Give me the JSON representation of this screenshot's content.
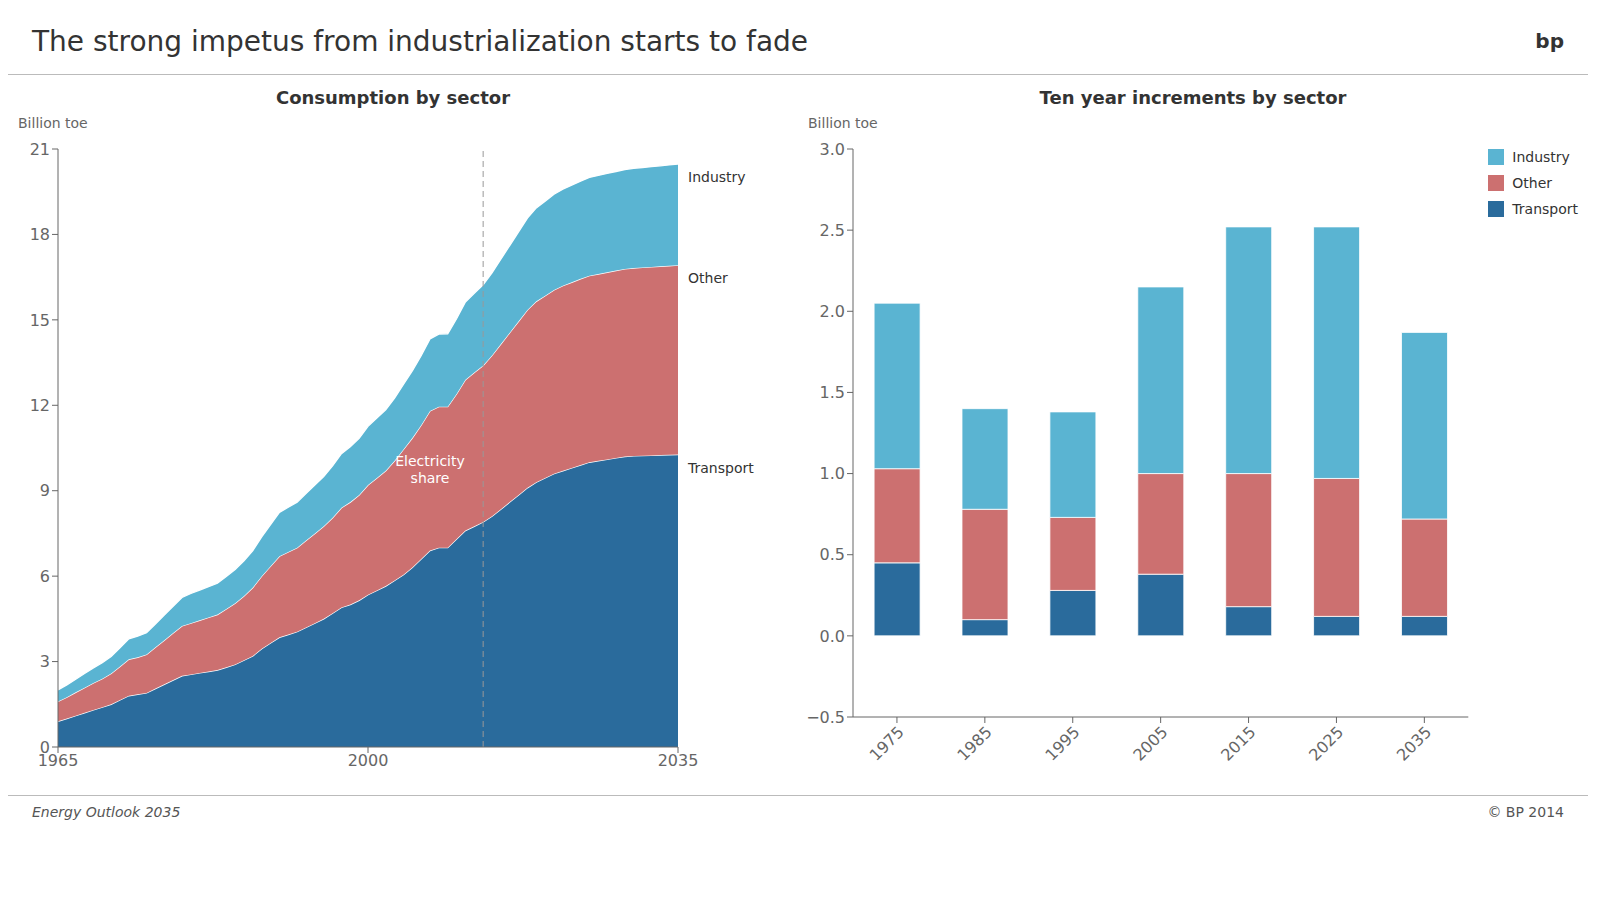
{
  "title": "The strong impetus from industrialization starts to fade",
  "annotations": [
    "bp",
    "Energy Outlook 2035",
    "© BP 2014"
  ],
  "chart_data": [
    {
      "type": "area",
      "title": "Consumption by sector",
      "y_label": "Billion toe",
      "stacked": true,
      "x": [
        1965,
        1966,
        1967,
        1968,
        1969,
        1970,
        1971,
        1972,
        1973,
        1974,
        1975,
        1976,
        1977,
        1978,
        1979,
        1980,
        1981,
        1982,
        1983,
        1984,
        1985,
        1986,
        1987,
        1988,
        1989,
        1990,
        1991,
        1992,
        1993,
        1994,
        1995,
        1996,
        1997,
        1998,
        1999,
        2000,
        2001,
        2002,
        2003,
        2004,
        2005,
        2006,
        2007,
        2008,
        2009,
        2010,
        2011,
        2012,
        2013,
        2014,
        2015,
        2016,
        2017,
        2018,
        2019,
        2020,
        2021,
        2022,
        2023,
        2024,
        2025,
        2026,
        2027,
        2028,
        2029,
        2030,
        2031,
        2032,
        2033,
        2034,
        2035
      ],
      "series": [
        {
          "name": "Transport",
          "color": "#2a6b9c",
          "values": [
            0.9,
            1.0,
            1.1,
            1.2,
            1.3,
            1.4,
            1.5,
            1.65,
            1.8,
            1.85,
            1.9,
            2.05,
            2.2,
            2.35,
            2.5,
            2.55,
            2.6,
            2.65,
            2.7,
            2.8,
            2.9,
            3.05,
            3.2,
            3.45,
            3.65,
            3.85,
            3.95,
            4.05,
            4.2,
            4.35,
            4.5,
            4.7,
            4.9,
            5.0,
            5.15,
            5.35,
            5.5,
            5.65,
            5.85,
            6.05,
            6.3,
            6.6,
            6.9,
            7.0,
            7.0,
            7.3,
            7.6,
            7.75,
            7.9,
            8.1,
            8.35,
            8.6,
            8.85,
            9.1,
            9.3,
            9.45,
            9.6,
            9.7,
            9.8,
            9.9,
            10.0,
            10.05,
            10.1,
            10.15,
            10.2,
            10.22,
            10.23,
            10.24,
            10.25,
            10.26,
            10.27
          ]
        },
        {
          "name": "Other",
          "color": "#cc7070",
          "values": [
            0.7,
            0.75,
            0.82,
            0.88,
            0.95,
            1.0,
            1.08,
            1.18,
            1.28,
            1.3,
            1.35,
            1.45,
            1.55,
            1.65,
            1.75,
            1.8,
            1.85,
            1.9,
            1.95,
            2.05,
            2.15,
            2.25,
            2.4,
            2.55,
            2.7,
            2.85,
            2.9,
            2.95,
            3.05,
            3.15,
            3.25,
            3.35,
            3.5,
            3.6,
            3.7,
            3.85,
            3.95,
            4.05,
            4.2,
            4.4,
            4.55,
            4.7,
            4.9,
            4.95,
            4.95,
            5.1,
            5.3,
            5.4,
            5.5,
            5.65,
            5.8,
            5.95,
            6.1,
            6.25,
            6.35,
            6.4,
            6.45,
            6.5,
            6.52,
            6.54,
            6.55,
            6.56,
            6.57,
            6.58,
            6.59,
            6.6,
            6.61,
            6.62,
            6.63,
            6.64,
            6.65
          ]
        },
        {
          "name": "Industry",
          "color": "#5ab4d2",
          "values": [
            0.4,
            0.43,
            0.46,
            0.5,
            0.53,
            0.56,
            0.6,
            0.65,
            0.72,
            0.74,
            0.76,
            0.82,
            0.88,
            0.94,
            1.0,
            1.04,
            1.06,
            1.08,
            1.1,
            1.14,
            1.18,
            1.24,
            1.3,
            1.38,
            1.46,
            1.54,
            1.57,
            1.6,
            1.65,
            1.7,
            1.75,
            1.82,
            1.9,
            1.94,
            1.99,
            2.06,
            2.1,
            2.14,
            2.2,
            2.28,
            2.36,
            2.44,
            2.53,
            2.55,
            2.56,
            2.64,
            2.73,
            2.78,
            2.83,
            2.9,
            2.98,
            3.06,
            3.14,
            3.22,
            3.28,
            3.32,
            3.36,
            3.39,
            3.41,
            3.43,
            3.45,
            3.46,
            3.47,
            3.48,
            3.49,
            3.5,
            3.51,
            3.52,
            3.53,
            3.54,
            3.55
          ]
        }
      ],
      "xlim": [
        1965,
        2035
      ],
      "xticks": [
        1965,
        2000,
        2035
      ],
      "ylim": [
        0,
        21
      ],
      "yticks": [
        0,
        3,
        6,
        9,
        12,
        15,
        18,
        21
      ],
      "reference_x": 2013,
      "annotations": [
        {
          "text": "Electricity\nshare",
          "x": 2007
        }
      ]
    },
    {
      "type": "bar",
      "title": "Ten year increments by sector",
      "y_label": "Billion toe",
      "stacked": true,
      "legend": "upper right",
      "categories": [
        "1975",
        "1985",
        "1995",
        "2005",
        "2015",
        "2025",
        "2035"
      ],
      "series": [
        {
          "name": "Transport",
          "color": "#2a6b9c",
          "values": [
            0.45,
            0.1,
            0.28,
            0.38,
            0.18,
            0.12,
            0.12
          ]
        },
        {
          "name": "Other",
          "color": "#cc7070",
          "values": [
            0.58,
            0.68,
            0.45,
            0.62,
            0.82,
            0.85,
            0.6
          ]
        },
        {
          "name": "Industry",
          "color": "#5ab4d2",
          "values": [
            1.02,
            0.62,
            0.65,
            1.15,
            1.52,
            1.55,
            1.15
          ]
        }
      ],
      "ylim": [
        -0.5,
        3.0
      ],
      "yticks": [
        {
          "value": -0.5,
          "label": "−0.5"
        },
        {
          "value": 0,
          "label": "0.0"
        },
        0.5,
        {
          "value": 1,
          "label": "1.0"
        },
        1.5,
        {
          "value": 2,
          "label": "2.0"
        },
        2.5,
        {
          "value": 3,
          "label": "3.0"
        }
      ]
    }
  ]
}
